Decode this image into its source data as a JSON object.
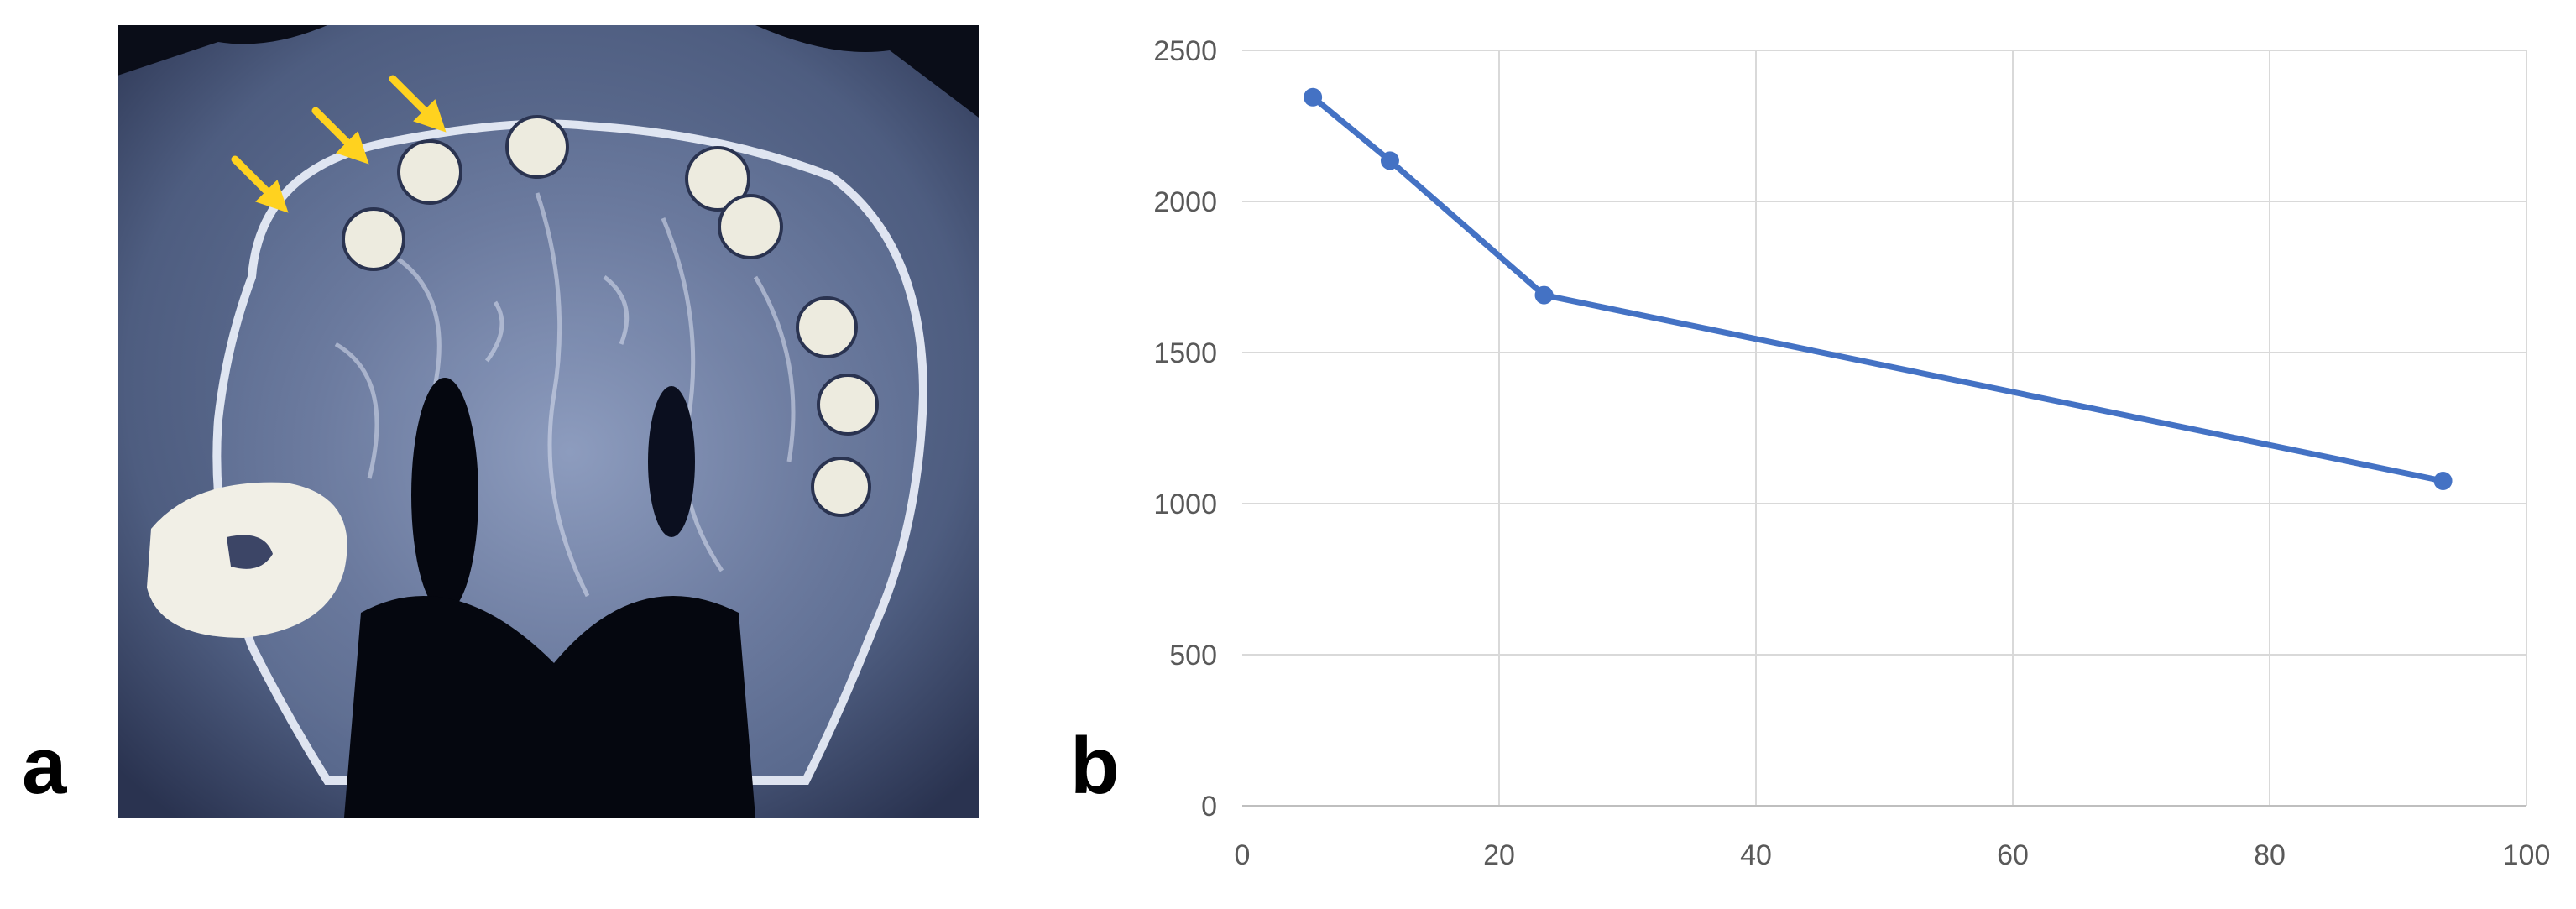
{
  "panels": {
    "a": {
      "label": "a"
    },
    "b": {
      "label": "b"
    }
  },
  "ct_image": {
    "arrow_color": "#FFD21F",
    "marker_color": "#EDEBDF",
    "tissue_color": "#5A6A8E",
    "arrow_count": 3
  },
  "chart_data": {
    "type": "line",
    "x": [
      5.5,
      11.5,
      23.5,
      93.5
    ],
    "series": [
      {
        "values": [
          2345,
          2135,
          1690,
          1075
        ]
      }
    ],
    "title": "",
    "xlabel": "",
    "ylabel": "",
    "xlim": [
      0,
      100
    ],
    "ylim": [
      0,
      2500
    ],
    "xticks": [
      "0",
      "20",
      "40",
      "60",
      "80",
      "100"
    ],
    "yticks": [
      "0",
      "500",
      "1000",
      "1500",
      "2000",
      "2500"
    ],
    "grid": true,
    "line_color": "#4472C4"
  }
}
